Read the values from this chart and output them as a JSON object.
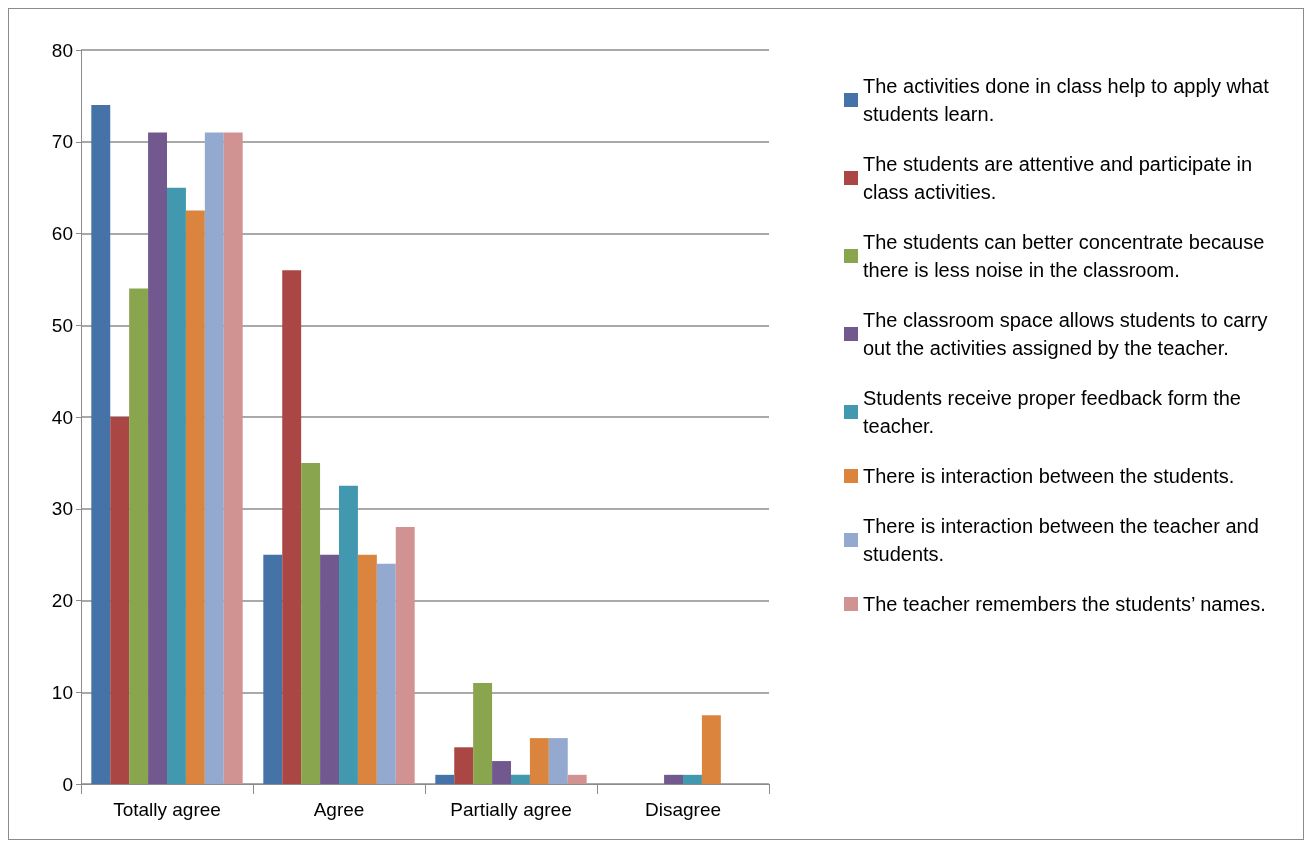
{
  "chart_data": {
    "type": "bar",
    "categories": [
      "Totally agree",
      "Agree",
      "Partially agree",
      "Disagree"
    ],
    "series": [
      {
        "name": "The activities done in class help to apply what students learn.",
        "color": "#4572a7",
        "values": [
          74,
          25,
          1,
          0
        ]
      },
      {
        "name": "The students are attentive and participate in class activities.",
        "color": "#aa4643",
        "values": [
          40,
          56,
          4,
          0
        ]
      },
      {
        "name": "The students can better concentrate because there is less noise in the classroom.",
        "color": "#89a54e",
        "values": [
          54,
          35,
          11,
          0
        ]
      },
      {
        "name": "The classroom space allows students to carry out the activities assigned by the teacher.",
        "color": "#71588f",
        "values": [
          71,
          25,
          2.5,
          1
        ]
      },
      {
        "name": "Students receive proper feedback form the teacher.",
        "color": "#4198af",
        "values": [
          65,
          32.5,
          1,
          1
        ]
      },
      {
        "name": "There is interaction between the students.",
        "color": "#db843d",
        "values": [
          62.5,
          25,
          5,
          7.5
        ]
      },
      {
        "name": "There is interaction between the teacher and students.",
        "color": "#93a9cf",
        "values": [
          71,
          24,
          5,
          0
        ]
      },
      {
        "name": "The teacher remembers the students’ names.",
        "color": "#d19392",
        "values": [
          71,
          28,
          1,
          0
        ]
      }
    ],
    "ylim": [
      0,
      80
    ],
    "yticks": [
      0,
      10,
      20,
      30,
      40,
      50,
      60,
      70,
      80
    ],
    "grid": "y",
    "legend": "right"
  }
}
